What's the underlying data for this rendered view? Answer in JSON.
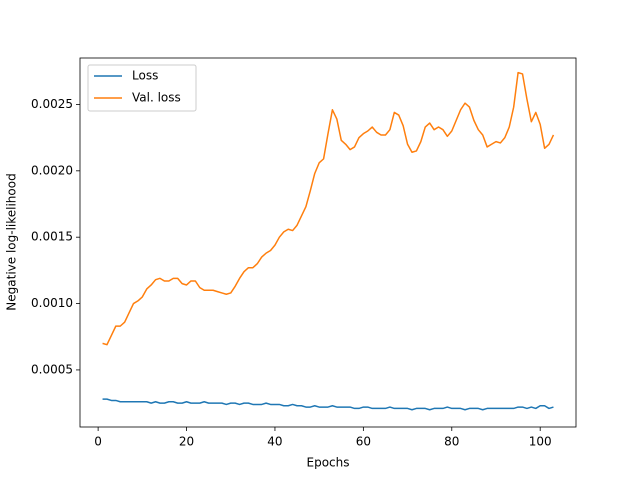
{
  "chart_data": {
    "type": "line",
    "xlabel": "Epochs",
    "ylabel": "Negative log-likelihood",
    "x": [
      1,
      2,
      3,
      4,
      5,
      6,
      7,
      8,
      9,
      10,
      11,
      12,
      13,
      14,
      15,
      16,
      17,
      18,
      19,
      20,
      21,
      22,
      23,
      24,
      25,
      26,
      27,
      28,
      29,
      30,
      31,
      32,
      33,
      34,
      35,
      36,
      37,
      38,
      39,
      40,
      41,
      42,
      43,
      44,
      45,
      46,
      47,
      48,
      49,
      50,
      51,
      52,
      53,
      54,
      55,
      56,
      57,
      58,
      59,
      60,
      61,
      62,
      63,
      64,
      65,
      66,
      67,
      68,
      69,
      70,
      71,
      72,
      73,
      74,
      75,
      76,
      77,
      78,
      79,
      80,
      81,
      82,
      83,
      84,
      85,
      86,
      87,
      88,
      89,
      90,
      91,
      92,
      93,
      94,
      95,
      96,
      97,
      98,
      99,
      100,
      101,
      102,
      103
    ],
    "series": [
      {
        "name": "Loss",
        "color": "#1f77b4",
        "values": [
          0.00028,
          0.00028,
          0.00027,
          0.00027,
          0.00026,
          0.00026,
          0.00026,
          0.00026,
          0.00026,
          0.00026,
          0.00026,
          0.00025,
          0.00026,
          0.00025,
          0.00025,
          0.00026,
          0.00026,
          0.00025,
          0.00025,
          0.00026,
          0.00025,
          0.00025,
          0.00025,
          0.00026,
          0.00025,
          0.00025,
          0.00025,
          0.00025,
          0.00024,
          0.00025,
          0.00025,
          0.00024,
          0.00025,
          0.00025,
          0.00024,
          0.00024,
          0.00024,
          0.00025,
          0.00024,
          0.00024,
          0.00024,
          0.00023,
          0.00023,
          0.00024,
          0.00023,
          0.00023,
          0.00022,
          0.00022,
          0.00023,
          0.00022,
          0.00022,
          0.00022,
          0.00023,
          0.00022,
          0.00022,
          0.00022,
          0.00022,
          0.00021,
          0.00021,
          0.00022,
          0.00022,
          0.00021,
          0.00021,
          0.00021,
          0.00021,
          0.00022,
          0.00021,
          0.00021,
          0.00021,
          0.00021,
          0.0002,
          0.00021,
          0.00021,
          0.00021,
          0.0002,
          0.00021,
          0.00021,
          0.00021,
          0.00022,
          0.00021,
          0.00021,
          0.00021,
          0.0002,
          0.00021,
          0.00021,
          0.00021,
          0.0002,
          0.00021,
          0.00021,
          0.00021,
          0.00021,
          0.00021,
          0.00021,
          0.00021,
          0.00022,
          0.00022,
          0.00021,
          0.00022,
          0.00021,
          0.00023,
          0.00023,
          0.00021,
          0.00022
        ]
      },
      {
        "name": "Val. loss",
        "color": "#ff7f0e",
        "values": [
          0.0007,
          0.00069,
          0.00076,
          0.00083,
          0.00083,
          0.00086,
          0.00093,
          0.001,
          0.00102,
          0.00105,
          0.00111,
          0.00114,
          0.00118,
          0.00119,
          0.00117,
          0.00117,
          0.00119,
          0.00119,
          0.00115,
          0.00114,
          0.00117,
          0.00117,
          0.00112,
          0.0011,
          0.0011,
          0.0011,
          0.00109,
          0.00108,
          0.00107,
          0.00108,
          0.00113,
          0.00119,
          0.00124,
          0.00127,
          0.00127,
          0.0013,
          0.00135,
          0.00138,
          0.0014,
          0.00144,
          0.0015,
          0.00154,
          0.00156,
          0.00155,
          0.00159,
          0.00166,
          0.00173,
          0.00185,
          0.00198,
          0.00206,
          0.00209,
          0.00228,
          0.00246,
          0.00239,
          0.00223,
          0.0022,
          0.00216,
          0.00218,
          0.00225,
          0.00228,
          0.0023,
          0.00233,
          0.00229,
          0.00227,
          0.00227,
          0.00231,
          0.00244,
          0.00242,
          0.00234,
          0.0022,
          0.00214,
          0.00215,
          0.00222,
          0.00233,
          0.00236,
          0.00231,
          0.00233,
          0.00231,
          0.00226,
          0.0023,
          0.00238,
          0.00246,
          0.00251,
          0.00248,
          0.00238,
          0.00231,
          0.00227,
          0.00218,
          0.0022,
          0.00222,
          0.00221,
          0.00225,
          0.00233,
          0.00248,
          0.00274,
          0.00273,
          0.00254,
          0.00237,
          0.00244,
          0.00235,
          0.00217,
          0.0022,
          0.00227
        ]
      }
    ],
    "xlim": [
      -4.1,
      108.1
    ],
    "ylim": [
      7e-05,
      0.00285
    ],
    "xticks": [
      0,
      20,
      40,
      60,
      80,
      100
    ],
    "yticks": [
      0.0005,
      {
        "value": 0.001,
        "label": "0.0010"
      },
      0.0015,
      {
        "value": 0.002,
        "label": "0.0020"
      },
      0.0025
    ],
    "legend": "upper left"
  }
}
